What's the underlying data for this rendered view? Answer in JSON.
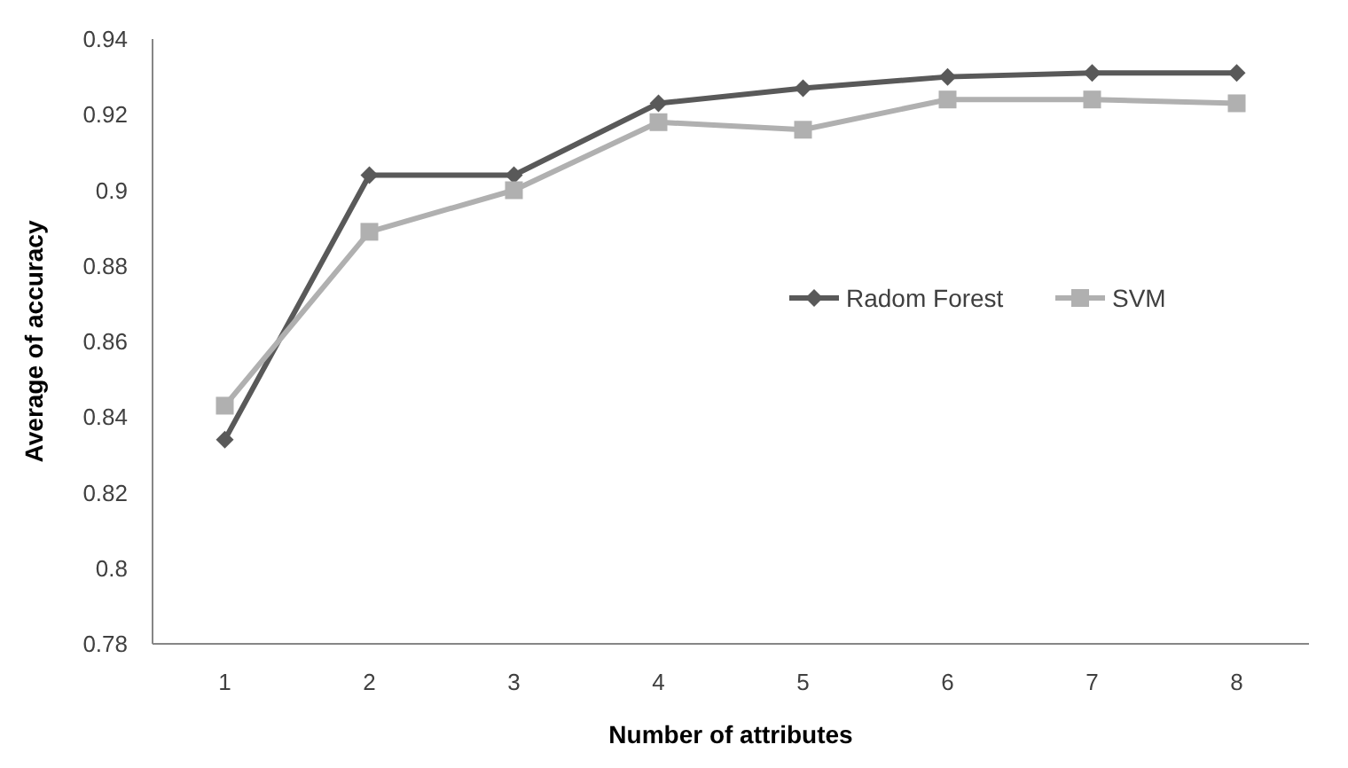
{
  "chart_data": {
    "type": "line",
    "xlabel": "Number of attributes",
    "ylabel": "Average of accuracy",
    "categories": [
      "1",
      "2",
      "3",
      "4",
      "5",
      "6",
      "7",
      "8"
    ],
    "series": [
      {
        "name": "Radom Forest",
        "color": "#595959",
        "marker": "diamond",
        "values": [
          0.834,
          0.904,
          0.904,
          0.923,
          0.927,
          0.93,
          0.931,
          0.931
        ]
      },
      {
        "name": "SVM",
        "color": "#b0b0b0",
        "marker": "square",
        "values": [
          0.843,
          0.889,
          0.9,
          0.918,
          0.916,
          0.924,
          0.924,
          0.923
        ]
      }
    ],
    "ylim": [
      0.78,
      0.94
    ],
    "yticks": [
      0.78,
      {
        "value": 0.8,
        "label": "0.8"
      },
      0.82,
      0.84,
      0.86,
      0.88,
      {
        "value": 0.9,
        "label": "0.9"
      },
      0.92,
      0.94
    ],
    "grid": false,
    "legend": "right",
    "line_style": "solid"
  }
}
